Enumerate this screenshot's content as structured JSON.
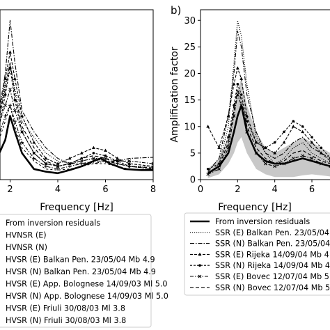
{
  "panels": {
    "b_label": "b)"
  },
  "chart_data": [
    {
      "type": "line",
      "panel": "a",
      "xlabel": "Frequency [Hz]",
      "ylabel": "",
      "xlim": [
        0,
        8
      ],
      "ylim": [
        0,
        32
      ],
      "x_ticks": [
        2,
        4,
        6,
        8
      ],
      "x_tick_labels": [
        "2",
        "4",
        "6",
        "8"
      ],
      "legend": {
        "placement": "below",
        "entries": [
          {
            "label": "From inversion residuals",
            "style": "thick-solid"
          },
          {
            "label": "HVNSR (E)",
            "style": "dotted"
          },
          {
            "label": "HVNSR (N)",
            "style": "dash-dot"
          },
          {
            "label": "HVSR (E) Balkan Pen. 23/05/04 Mb 4.9",
            "style": "dash-triangle"
          },
          {
            "label": "HVSR (N) Balkan Pen. 23/05/04 Mb 4.9",
            "style": "dash-circle"
          },
          {
            "label": "HVSR (E) App. Bolognese 14/09/03 Ml 5.0",
            "style": "dash-dot-x"
          },
          {
            "label": "HVSR (N) App. Bolognese 14/09/03 Ml 5.0",
            "style": "dash-dot-plus"
          },
          {
            "label": "HVSR (E) Friuli 30/08/03 Ml 3.8",
            "style": "dashed"
          },
          {
            "label": "HVSR (N) Friuli 30/08/03 Ml 3.8",
            "style": "dashed-fine"
          }
        ]
      },
      "series": [
        {
          "style": "thick-solid",
          "x": [
            0,
            0.5,
            1,
            1.5,
            1.8,
            2.0,
            2.2,
            2.5,
            3,
            3.5,
            4,
            4.5,
            5,
            5.5,
            5.8,
            6.2,
            6.8,
            7.5,
            8
          ],
          "y": [
            2,
            2.2,
            2.8,
            4.5,
            7.5,
            12,
            9,
            5,
            2,
            1.5,
            1.2,
            1.8,
            2.5,
            3.5,
            4,
            3,
            2,
            1.8,
            1.8
          ]
        },
        {
          "style": "dotted",
          "x": [
            0,
            0.5,
            1,
            1.5,
            1.8,
            2.0,
            2.2,
            2.5,
            3,
            3.5,
            4,
            4.5,
            5,
            5.5,
            6,
            6.5,
            7,
            8
          ],
          "y": [
            7,
            6.5,
            7,
            10,
            18,
            22,
            17,
            11,
            8,
            5,
            3.5,
            3,
            3.5,
            4,
            3.5,
            3,
            2.5,
            2.5
          ]
        },
        {
          "style": "dash-dot",
          "x": [
            0,
            0.5,
            1,
            1.5,
            1.8,
            2.0,
            2.2,
            2.5,
            3,
            3.5,
            4,
            4.5,
            5,
            5.5,
            6,
            6.5,
            7,
            8
          ],
          "y": [
            5,
            5.5,
            6,
            12,
            20,
            30,
            22,
            13,
            9,
            6,
            4,
            3,
            3,
            3,
            3.5,
            3.5,
            4,
            4.2
          ]
        },
        {
          "style": "dash-triangle",
          "x": [
            0,
            0.5,
            1,
            1.5,
            1.8,
            2.0,
            2.2,
            2.5,
            3,
            3.5,
            4,
            4.5,
            5,
            5.5,
            6,
            6.5,
            7,
            8
          ],
          "y": [
            6,
            6,
            7,
            11,
            19,
            24,
            19,
            12,
            7,
            4,
            3,
            4,
            5,
            6,
            5.5,
            4,
            3,
            2.5
          ]
        },
        {
          "style": "dash-circle",
          "x": [
            0,
            0.5,
            1,
            1.5,
            1.8,
            2.0,
            2.2,
            2.5,
            3,
            3.5,
            4,
            4.5,
            5,
            5.5,
            6,
            6.5,
            7,
            8
          ],
          "y": [
            4,
            4.5,
            5,
            9,
            16,
            21,
            15,
            9,
            5,
            3,
            2.5,
            3,
            4,
            5,
            4.5,
            3.5,
            2.5,
            2
          ]
        },
        {
          "style": "dash-dot-x",
          "x": [
            0,
            0.5,
            1,
            1.5,
            1.8,
            2.0,
            2.2,
            2.5,
            3,
            3.5,
            4,
            4.5,
            5,
            5.5,
            6,
            6.5,
            7,
            8
          ],
          "y": [
            5,
            5,
            6,
            10,
            14,
            17,
            13,
            9,
            5,
            3,
            2.5,
            3,
            3.5,
            4,
            4,
            3.5,
            3.5,
            3
          ]
        },
        {
          "style": "dash-dot-plus",
          "x": [
            0,
            0.5,
            1,
            1.5,
            1.8,
            2.0,
            2.2,
            2.5,
            3,
            3.5,
            4,
            4.5,
            5,
            5.5,
            6,
            6.5,
            7,
            8
          ],
          "y": [
            3.5,
            4,
            5,
            8,
            12,
            14,
            11,
            7,
            4,
            2.5,
            2,
            2.5,
            3,
            3.5,
            3.5,
            3,
            2.5,
            2
          ]
        },
        {
          "style": "dashed",
          "x": [
            0,
            0.5,
            1,
            1.5,
            1.8,
            2.0,
            2.2,
            2.5,
            3,
            3.5,
            4,
            4.5,
            5,
            5.5,
            6,
            6.5,
            7,
            8
          ],
          "y": [
            6,
            6.5,
            7,
            11,
            17,
            22,
            16,
            10,
            6,
            3.5,
            2.5,
            3,
            4,
            4.5,
            4,
            3,
            2.5,
            2.2
          ]
        },
        {
          "style": "dashed-fine",
          "x": [
            0,
            0.5,
            1,
            1.5,
            1.8,
            2.0,
            2.2,
            2.5,
            3,
            3.5,
            4,
            4.5,
            5,
            5.5,
            6,
            6.5,
            7,
            8
          ],
          "y": [
            3,
            3.5,
            4.5,
            7,
            11,
            14,
            10,
            6,
            3.5,
            2,
            1.8,
            2,
            2.5,
            3,
            3,
            2.5,
            2,
            1.8
          ]
        }
      ]
    },
    {
      "type": "line",
      "panel": "b",
      "xlabel": "Frequency [Hz]",
      "ylabel": "Amplification factor",
      "xlim": [
        0,
        7.5
      ],
      "ylim": [
        0,
        32
      ],
      "x_ticks": [
        0,
        2,
        4,
        6
      ],
      "x_tick_labels": [
        "0",
        "2",
        "4",
        "6"
      ],
      "y_ticks": [
        0,
        5,
        10,
        15,
        20,
        25,
        30
      ],
      "y_tick_labels": [
        "0",
        "5",
        "10",
        "15",
        "20",
        "25",
        "30"
      ],
      "band": {
        "x": [
          0.4,
          1,
          1.5,
          1.8,
          2.0,
          2.2,
          2.5,
          3,
          3.5,
          4,
          4.5,
          5,
          5.5,
          6,
          6.5,
          7,
          7.5
        ],
        "lower": [
          0.3,
          1,
          3,
          5,
          7,
          8,
          5,
          2,
          1,
          0.5,
          0.5,
          0.5,
          0.8,
          1,
          0.8,
          0.6,
          0.5
        ],
        "upper": [
          2,
          4,
          8,
          13,
          17,
          19,
          14,
          9,
          6,
          5,
          6,
          7,
          8,
          7,
          6,
          5,
          4
        ]
      },
      "legend": {
        "placement": "below",
        "entries": [
          {
            "label": "From inversion residuals",
            "style": "thick-solid"
          },
          {
            "label": "SSR (E) Balkan Pen. 23/05/04",
            "style": "dotted"
          },
          {
            "label": "SSR (N) Balkan Pen. 23/05/04",
            "style": "dash-dot"
          },
          {
            "label": "SSR (E) Rijeka 14/09/04 Mb 4",
            "style": "dash-triangle"
          },
          {
            "label": "SSR (N) Rijeka 14/09/04 Mb 4",
            "style": "dash-circle"
          },
          {
            "label": "SSR (E) Bovec 12/07/04 Mb 5",
            "style": "dash-dot-x"
          },
          {
            "label": "SSR (N) Bovec 12/07/04 Mb 5",
            "style": "dashed"
          }
        ]
      },
      "series": [
        {
          "style": "thick-solid",
          "x": [
            0.4,
            1,
            1.5,
            1.8,
            2.0,
            2.2,
            2.5,
            3,
            3.5,
            4,
            4.5,
            5,
            5.5,
            6,
            6.5,
            7,
            7.5
          ],
          "y": [
            1.2,
            2.5,
            5,
            9,
            12,
            14,
            9,
            5,
            3.5,
            3,
            3,
            3.5,
            4,
            3.5,
            3,
            2.5,
            2
          ]
        },
        {
          "style": "dotted",
          "x": [
            0.4,
            1,
            1.5,
            1.8,
            2.0,
            2.2,
            2.5,
            3,
            3.5,
            4,
            4.5,
            5,
            5.5,
            6,
            6.5,
            7,
            7.5
          ],
          "y": [
            1,
            3,
            10,
            22,
            30,
            27,
            18,
            8,
            5,
            3,
            4,
            6,
            7,
            5,
            4,
            3,
            2.5
          ]
        },
        {
          "style": "dash-dot",
          "x": [
            0.4,
            1,
            1.5,
            1.8,
            2.0,
            2.2,
            2.5,
            3,
            3.5,
            4,
            4.5,
            5,
            5.5,
            6,
            6.5,
            7,
            7.5
          ],
          "y": [
            1.5,
            4,
            12,
            20,
            28,
            25,
            16,
            9,
            5,
            4,
            5,
            7,
            8,
            6,
            5,
            4,
            3
          ]
        },
        {
          "style": "dash-triangle",
          "x": [
            0.4,
            1,
            1.5,
            1.8,
            2.0,
            2.2,
            2.5,
            3,
            3.5,
            4,
            4.5,
            5,
            5.5,
            6,
            6.5,
            7,
            7.5
          ],
          "y": [
            10,
            6,
            12,
            18,
            21,
            19,
            12,
            7,
            6,
            5,
            7,
            10,
            9,
            7,
            5,
            3.5,
            2.5
          ]
        },
        {
          "style": "dash-circle",
          "x": [
            0.4,
            1,
            1.5,
            1.8,
            2.0,
            2.2,
            2.5,
            3,
            3.5,
            4,
            4.5,
            5,
            5.5,
            6,
            6.5,
            7,
            7.5
          ],
          "y": [
            2,
            3,
            8,
            14,
            18,
            16,
            11,
            7,
            6,
            7,
            9,
            11,
            10,
            8,
            6,
            4,
            3
          ]
        },
        {
          "style": "dash-dot-x",
          "x": [
            0.4,
            1,
            1.5,
            1.8,
            2.0,
            2.2,
            2.5,
            3,
            3.5,
            4,
            4.5,
            5,
            5.5,
            6,
            6.5,
            7,
            7.5
          ],
          "y": [
            1,
            2,
            6,
            12,
            16,
            14,
            9,
            5,
            3,
            2.5,
            3,
            4,
            4.5,
            4,
            3,
            2.5,
            2
          ]
        },
        {
          "style": "dashed",
          "x": [
            0.4,
            1,
            1.5,
            1.8,
            2.0,
            2.2,
            2.5,
            3,
            3.5,
            4,
            4.5,
            5,
            5.5,
            6,
            6.5,
            7,
            7.5
          ],
          "y": [
            1,
            2.5,
            7,
            13,
            17,
            15,
            10,
            6,
            4,
            3,
            3.5,
            5,
            5.5,
            4.5,
            3.5,
            3,
            2.5
          ]
        }
      ]
    }
  ]
}
